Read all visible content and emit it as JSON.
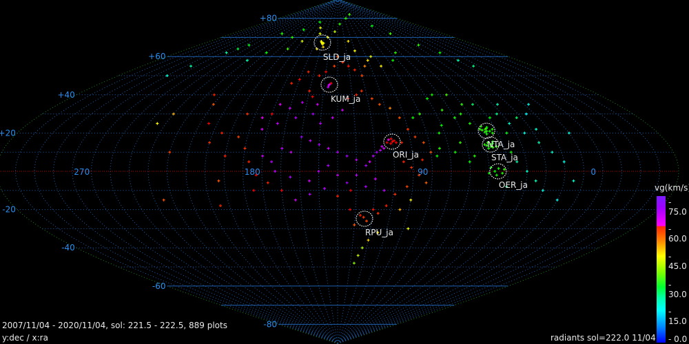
{
  "header": {
    "period_text": "2007/11/04 - 2020/11/04,  sol: 221.5 - 222.5, 889 plots",
    "axes_text": "y:dec / x:ra",
    "footer_text": "radiants sol=222.0 11/04"
  },
  "colorbar": {
    "title": "vg(km/s)",
    "ticks": [
      "- 75.0",
      "- 60.0",
      "- 45.0",
      "- 30.0",
      "- 15.0",
      "-  0.0"
    ],
    "range": [
      0,
      75
    ]
  },
  "chart_data": {
    "type": "scatter",
    "projection": "sinusoidal",
    "x_axis": "ra",
    "y_axis": "dec",
    "center_ra": 135,
    "ra_tick_labels": [
      "270",
      "180",
      "90",
      "0"
    ],
    "ra_ticks": [
      270,
      180,
      90,
      0
    ],
    "dec_tick_labels": [
      "+80",
      "+60",
      "+40",
      "+20",
      "-20",
      "-40",
      "-60",
      "-80"
    ],
    "dec_ticks": [
      80,
      60,
      40,
      20,
      -20,
      -40,
      -60,
      -80
    ],
    "grid": true,
    "colors": {
      "grid": "#1e5fae",
      "equator": "#c00000",
      "border": "#1a8a1a",
      "circle": "#ffffff",
      "label": "#e8e8e8"
    },
    "showers": [
      {
        "name": "SLD_ja",
        "ra": 155.8,
        "dec": 67.3
      },
      {
        "name": "KUM_ja",
        "ra": 141.2,
        "dec": 45.3
      },
      {
        "name": "ORI_ja",
        "ra": 105.2,
        "dec": 15.5
      },
      {
        "name": "NTA_ja",
        "ra": 50.7,
        "dec": 21.2
      },
      {
        "name": "STA_ja",
        "ra": 51.8,
        "dec": 14.0
      },
      {
        "name": "OER_ja",
        "ra": 50.3,
        "dec": 0.0
      },
      {
        "name": "RPU_ja",
        "ra": 119.4,
        "dec": -24.8
      }
    ],
    "points_fields": [
      "ra",
      "dec",
      "vg"
    ],
    "points": [
      [
        156,
        67,
        45
      ],
      [
        157,
        67.5,
        45
      ],
      [
        155,
        66.5,
        46
      ],
      [
        154,
        67,
        44
      ],
      [
        158,
        68,
        45
      ],
      [
        153,
        65,
        47
      ],
      [
        160,
        64,
        46
      ],
      [
        150,
        70,
        44
      ],
      [
        165,
        72,
        43
      ],
      [
        140,
        73,
        42
      ],
      [
        170,
        75,
        44
      ],
      [
        130,
        77,
        33
      ],
      [
        180,
        78,
        30
      ],
      [
        200,
        74,
        30
      ],
      [
        110,
        80,
        32
      ],
      [
        90,
        82,
        34
      ],
      [
        230,
        72,
        32
      ],
      [
        250,
        66,
        28
      ],
      [
        255,
        64,
        25
      ],
      [
        260,
        62,
        20
      ],
      [
        270,
        55,
        20
      ],
      [
        275,
        50,
        18
      ],
      [
        60,
        76,
        30
      ],
      [
        45,
        72,
        34
      ],
      [
        30,
        66,
        33
      ],
      [
        20,
        62,
        30
      ],
      [
        15,
        58,
        20
      ],
      [
        10,
        55,
        22
      ],
      [
        70,
        62,
        32
      ],
      [
        80,
        58,
        30
      ],
      [
        95,
        55,
        46
      ],
      [
        100,
        60,
        44
      ],
      [
        115,
        63,
        45
      ],
      [
        120,
        68,
        46
      ],
      [
        185,
        68,
        43
      ],
      [
        195,
        64,
        34
      ],
      [
        205,
        70,
        32
      ],
      [
        215,
        62,
        30
      ],
      [
        225,
        58,
        20
      ],
      [
        141,
        45.5,
        70
      ],
      [
        141.5,
        45,
        66
      ],
      [
        140,
        46,
        62
      ],
      [
        142,
        44,
        68
      ],
      [
        150,
        50,
        58
      ],
      [
        145,
        52,
        60
      ],
      [
        138,
        55,
        56
      ],
      [
        130,
        57,
        57
      ],
      [
        125,
        55,
        59
      ],
      [
        120,
        53,
        58
      ],
      [
        115,
        50,
        56
      ],
      [
        110,
        55,
        52
      ],
      [
        105,
        58,
        46
      ],
      [
        135,
        60,
        55
      ],
      [
        160,
        52,
        58
      ],
      [
        165,
        48,
        60
      ],
      [
        170,
        46,
        58
      ],
      [
        155,
        42,
        58
      ],
      [
        152,
        39,
        61
      ],
      [
        148,
        35,
        66
      ],
      [
        158,
        36,
        68
      ],
      [
        165,
        33,
        67
      ],
      [
        172,
        35,
        64
      ],
      [
        175,
        30,
        62
      ],
      [
        180,
        28,
        64
      ],
      [
        178,
        22,
        66
      ],
      [
        170,
        25,
        68
      ],
      [
        160,
        28,
        70
      ],
      [
        150,
        30,
        71
      ],
      [
        145,
        25,
        69
      ],
      [
        138,
        28,
        67
      ],
      [
        132,
        32,
        66
      ],
      [
        128,
        38,
        60
      ],
      [
        122,
        40,
        58
      ],
      [
        118,
        42,
        57
      ],
      [
        112,
        38,
        56
      ],
      [
        108,
        35,
        55
      ],
      [
        102,
        33,
        52
      ],
      [
        98,
        28,
        55
      ],
      [
        95,
        22,
        57
      ],
      [
        92,
        18,
        56
      ],
      [
        88,
        15,
        55
      ],
      [
        100,
        15,
        58
      ],
      [
        105,
        15.5,
        62
      ],
      [
        104,
        16,
        60
      ],
      [
        106,
        14.5,
        61
      ],
      [
        107,
        16.5,
        63
      ],
      [
        103,
        15,
        62
      ],
      [
        105.5,
        17,
        60
      ],
      [
        108,
        15,
        62
      ],
      [
        110,
        12,
        66
      ],
      [
        112,
        11,
        68
      ],
      [
        114,
        10,
        70
      ],
      [
        111,
        13,
        67
      ],
      [
        116,
        8,
        69
      ],
      [
        118,
        5,
        66
      ],
      [
        120,
        3,
        71
      ],
      [
        125,
        6,
        68
      ],
      [
        130,
        8,
        72
      ],
      [
        135,
        10,
        69
      ],
      [
        140,
        12,
        67
      ],
      [
        145,
        14,
        70
      ],
      [
        150,
        16,
        68
      ],
      [
        155,
        18,
        72
      ],
      [
        160,
        10,
        66
      ],
      [
        165,
        12,
        69
      ],
      [
        170,
        5,
        70
      ],
      [
        175,
        8,
        67
      ],
      [
        168,
        0,
        68
      ],
      [
        160,
        -3,
        71
      ],
      [
        150,
        -5,
        66
      ],
      [
        145,
        0,
        69
      ],
      [
        140,
        3,
        70
      ],
      [
        135,
        -2,
        67
      ],
      [
        130,
        -6,
        72
      ],
      [
        125,
        -2,
        68
      ],
      [
        120,
        -8,
        70
      ],
      [
        115,
        -4,
        66
      ],
      [
        110,
        -10,
        68
      ],
      [
        128,
        -10,
        60
      ],
      [
        135,
        -13,
        58
      ],
      [
        142,
        -9,
        69
      ],
      [
        150,
        -12,
        70
      ],
      [
        158,
        -15,
        66
      ],
      [
        165,
        -10,
        61
      ],
      [
        172,
        -6,
        58
      ],
      [
        178,
        -2,
        60
      ],
      [
        182,
        5,
        58
      ],
      [
        185,
        12,
        57
      ],
      [
        190,
        18,
        56
      ],
      [
        180,
        -10,
        60
      ],
      [
        100,
        5,
        58
      ],
      [
        96,
        2,
        57
      ],
      [
        92,
        -2,
        56
      ],
      [
        90,
        6,
        58
      ],
      [
        88,
        -6,
        54
      ],
      [
        85,
        10,
        55
      ],
      [
        98,
        -8,
        56
      ],
      [
        104,
        -12,
        57
      ],
      [
        108,
        -18,
        58
      ],
      [
        115,
        -20,
        59
      ],
      [
        120,
        -24,
        57
      ],
      [
        122,
        -23,
        58
      ],
      [
        118,
        -26,
        56
      ],
      [
        125,
        -28,
        55
      ],
      [
        112,
        -22,
        57
      ],
      [
        128,
        -20,
        60
      ],
      [
        100,
        -20,
        50
      ],
      [
        95,
        -15,
        45
      ],
      [
        92,
        -30,
        44
      ],
      [
        110,
        -32,
        46
      ],
      [
        115,
        -36,
        47
      ],
      [
        118,
        -40,
        40
      ],
      [
        120,
        -44,
        42
      ],
      [
        122,
        -48,
        38
      ],
      [
        50.7,
        21,
        32
      ],
      [
        51,
        22,
        33
      ],
      [
        49,
        21,
        31
      ],
      [
        52,
        20.5,
        32
      ],
      [
        50,
        22.5,
        34
      ],
      [
        48,
        20,
        32
      ],
      [
        53,
        21.5,
        33
      ],
      [
        51.5,
        19.5,
        31
      ],
      [
        47,
        22,
        32
      ],
      [
        54,
        22,
        33
      ],
      [
        49.5,
        23,
        30
      ],
      [
        52.5,
        23.5,
        32
      ],
      [
        51.8,
        14,
        32
      ],
      [
        52,
        13,
        33
      ],
      [
        50.5,
        14.5,
        31
      ],
      [
        53,
        15,
        32
      ],
      [
        51,
        12.5,
        33
      ],
      [
        54,
        13.5,
        32
      ],
      [
        50,
        15.5,
        31
      ],
      [
        55,
        14,
        33
      ],
      [
        49,
        13,
        32
      ],
      [
        53.5,
        12,
        31
      ],
      [
        52,
        0,
        30
      ],
      [
        50,
        1.5,
        31
      ],
      [
        48,
        -1,
        32
      ],
      [
        54,
        2,
        30
      ],
      [
        51,
        -2,
        31
      ],
      [
        47,
        1,
        33
      ],
      [
        55,
        -1,
        30
      ],
      [
        60,
        30,
        32
      ],
      [
        65,
        28,
        31
      ],
      [
        70,
        32,
        33
      ],
      [
        75,
        24,
        30
      ],
      [
        78,
        20,
        31
      ],
      [
        80,
        12,
        32
      ],
      [
        82,
        8,
        30
      ],
      [
        72,
        10,
        31
      ],
      [
        68,
        15,
        33
      ],
      [
        62,
        8,
        32
      ],
      [
        58,
        25,
        31
      ],
      [
        65,
        5,
        30
      ],
      [
        85,
        30,
        33
      ],
      [
        90,
        28,
        30
      ],
      [
        75,
        38,
        30
      ],
      [
        70,
        40,
        31
      ],
      [
        44,
        28,
        30
      ],
      [
        40,
        20,
        29
      ],
      [
        42,
        10,
        31
      ],
      [
        55,
        35,
        33
      ],
      [
        60,
        40,
        34
      ],
      [
        35,
        25,
        18
      ],
      [
        30,
        20,
        16
      ],
      [
        25,
        15,
        20
      ],
      [
        20,
        10,
        18
      ],
      [
        15,
        5,
        17
      ],
      [
        38,
        30,
        22
      ],
      [
        32,
        35,
        19
      ],
      [
        28,
        28,
        24
      ],
      [
        22,
        22,
        18
      ],
      [
        40,
        5,
        20
      ],
      [
        35,
        0,
        18
      ],
      [
        30,
        -5,
        19
      ],
      [
        25,
        -10,
        17
      ],
      [
        15,
        -15,
        16
      ],
      [
        10,
        -5,
        18
      ],
      [
        45,
        -8,
        22
      ],
      [
        20,
        30,
        15
      ],
      [
        5,
        20,
        17
      ],
      [
        48,
        35,
        24
      ],
      [
        12,
        35,
        16
      ],
      [
        200,
        20,
        58
      ],
      [
        205,
        15,
        57
      ],
      [
        195,
        8,
        58
      ],
      [
        198,
        -5,
        55
      ],
      [
        210,
        25,
        60
      ],
      [
        190,
        30,
        57
      ],
      [
        215,
        35,
        55
      ],
      [
        220,
        40,
        58
      ],
      [
        225,
        10,
        56
      ],
      [
        230,
        -15,
        55
      ],
      [
        200,
        -18,
        58
      ],
      [
        235,
        30,
        50
      ],
      [
        240,
        25,
        45
      ]
    ]
  }
}
